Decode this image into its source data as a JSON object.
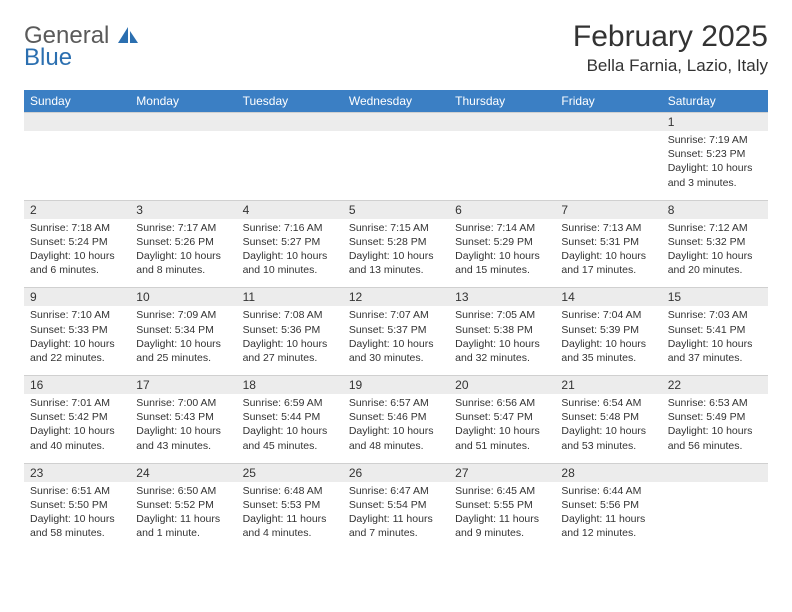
{
  "brand": {
    "general": "General",
    "blue": "Blue"
  },
  "title": "February 2025",
  "location": "Bella Farnia, Lazio, Italy",
  "colors": {
    "header_bg": "#3b7fc4",
    "header_text": "#ffffff",
    "daynum_bg": "#ececec",
    "text": "#333333",
    "logo_gray": "#5a5a5a",
    "logo_blue": "#2b6fb0"
  },
  "dow": [
    "Sunday",
    "Monday",
    "Tuesday",
    "Wednesday",
    "Thursday",
    "Friday",
    "Saturday"
  ],
  "weeks": [
    [
      {
        "n": "",
        "sunrise": "",
        "sunset": "",
        "daylight": ""
      },
      {
        "n": "",
        "sunrise": "",
        "sunset": "",
        "daylight": ""
      },
      {
        "n": "",
        "sunrise": "",
        "sunset": "",
        "daylight": ""
      },
      {
        "n": "",
        "sunrise": "",
        "sunset": "",
        "daylight": ""
      },
      {
        "n": "",
        "sunrise": "",
        "sunset": "",
        "daylight": ""
      },
      {
        "n": "",
        "sunrise": "",
        "sunset": "",
        "daylight": ""
      },
      {
        "n": "1",
        "sunrise": "Sunrise: 7:19 AM",
        "sunset": "Sunset: 5:23 PM",
        "daylight": "Daylight: 10 hours and 3 minutes."
      }
    ],
    [
      {
        "n": "2",
        "sunrise": "Sunrise: 7:18 AM",
        "sunset": "Sunset: 5:24 PM",
        "daylight": "Daylight: 10 hours and 6 minutes."
      },
      {
        "n": "3",
        "sunrise": "Sunrise: 7:17 AM",
        "sunset": "Sunset: 5:26 PM",
        "daylight": "Daylight: 10 hours and 8 minutes."
      },
      {
        "n": "4",
        "sunrise": "Sunrise: 7:16 AM",
        "sunset": "Sunset: 5:27 PM",
        "daylight": "Daylight: 10 hours and 10 minutes."
      },
      {
        "n": "5",
        "sunrise": "Sunrise: 7:15 AM",
        "sunset": "Sunset: 5:28 PM",
        "daylight": "Daylight: 10 hours and 13 minutes."
      },
      {
        "n": "6",
        "sunrise": "Sunrise: 7:14 AM",
        "sunset": "Sunset: 5:29 PM",
        "daylight": "Daylight: 10 hours and 15 minutes."
      },
      {
        "n": "7",
        "sunrise": "Sunrise: 7:13 AM",
        "sunset": "Sunset: 5:31 PM",
        "daylight": "Daylight: 10 hours and 17 minutes."
      },
      {
        "n": "8",
        "sunrise": "Sunrise: 7:12 AM",
        "sunset": "Sunset: 5:32 PM",
        "daylight": "Daylight: 10 hours and 20 minutes."
      }
    ],
    [
      {
        "n": "9",
        "sunrise": "Sunrise: 7:10 AM",
        "sunset": "Sunset: 5:33 PM",
        "daylight": "Daylight: 10 hours and 22 minutes."
      },
      {
        "n": "10",
        "sunrise": "Sunrise: 7:09 AM",
        "sunset": "Sunset: 5:34 PM",
        "daylight": "Daylight: 10 hours and 25 minutes."
      },
      {
        "n": "11",
        "sunrise": "Sunrise: 7:08 AM",
        "sunset": "Sunset: 5:36 PM",
        "daylight": "Daylight: 10 hours and 27 minutes."
      },
      {
        "n": "12",
        "sunrise": "Sunrise: 7:07 AM",
        "sunset": "Sunset: 5:37 PM",
        "daylight": "Daylight: 10 hours and 30 minutes."
      },
      {
        "n": "13",
        "sunrise": "Sunrise: 7:05 AM",
        "sunset": "Sunset: 5:38 PM",
        "daylight": "Daylight: 10 hours and 32 minutes."
      },
      {
        "n": "14",
        "sunrise": "Sunrise: 7:04 AM",
        "sunset": "Sunset: 5:39 PM",
        "daylight": "Daylight: 10 hours and 35 minutes."
      },
      {
        "n": "15",
        "sunrise": "Sunrise: 7:03 AM",
        "sunset": "Sunset: 5:41 PM",
        "daylight": "Daylight: 10 hours and 37 minutes."
      }
    ],
    [
      {
        "n": "16",
        "sunrise": "Sunrise: 7:01 AM",
        "sunset": "Sunset: 5:42 PM",
        "daylight": "Daylight: 10 hours and 40 minutes."
      },
      {
        "n": "17",
        "sunrise": "Sunrise: 7:00 AM",
        "sunset": "Sunset: 5:43 PM",
        "daylight": "Daylight: 10 hours and 43 minutes."
      },
      {
        "n": "18",
        "sunrise": "Sunrise: 6:59 AM",
        "sunset": "Sunset: 5:44 PM",
        "daylight": "Daylight: 10 hours and 45 minutes."
      },
      {
        "n": "19",
        "sunrise": "Sunrise: 6:57 AM",
        "sunset": "Sunset: 5:46 PM",
        "daylight": "Daylight: 10 hours and 48 minutes."
      },
      {
        "n": "20",
        "sunrise": "Sunrise: 6:56 AM",
        "sunset": "Sunset: 5:47 PM",
        "daylight": "Daylight: 10 hours and 51 minutes."
      },
      {
        "n": "21",
        "sunrise": "Sunrise: 6:54 AM",
        "sunset": "Sunset: 5:48 PM",
        "daylight": "Daylight: 10 hours and 53 minutes."
      },
      {
        "n": "22",
        "sunrise": "Sunrise: 6:53 AM",
        "sunset": "Sunset: 5:49 PM",
        "daylight": "Daylight: 10 hours and 56 minutes."
      }
    ],
    [
      {
        "n": "23",
        "sunrise": "Sunrise: 6:51 AM",
        "sunset": "Sunset: 5:50 PM",
        "daylight": "Daylight: 10 hours and 58 minutes."
      },
      {
        "n": "24",
        "sunrise": "Sunrise: 6:50 AM",
        "sunset": "Sunset: 5:52 PM",
        "daylight": "Daylight: 11 hours and 1 minute."
      },
      {
        "n": "25",
        "sunrise": "Sunrise: 6:48 AM",
        "sunset": "Sunset: 5:53 PM",
        "daylight": "Daylight: 11 hours and 4 minutes."
      },
      {
        "n": "26",
        "sunrise": "Sunrise: 6:47 AM",
        "sunset": "Sunset: 5:54 PM",
        "daylight": "Daylight: 11 hours and 7 minutes."
      },
      {
        "n": "27",
        "sunrise": "Sunrise: 6:45 AM",
        "sunset": "Sunset: 5:55 PM",
        "daylight": "Daylight: 11 hours and 9 minutes."
      },
      {
        "n": "28",
        "sunrise": "Sunrise: 6:44 AM",
        "sunset": "Sunset: 5:56 PM",
        "daylight": "Daylight: 11 hours and 12 minutes."
      },
      {
        "n": "",
        "sunrise": "",
        "sunset": "",
        "daylight": ""
      }
    ]
  ]
}
